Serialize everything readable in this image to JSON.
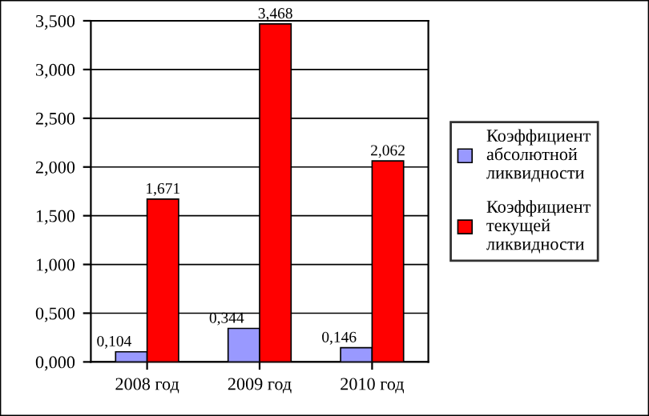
{
  "chart_data": {
    "type": "bar",
    "categories": [
      "2008 год",
      "2009 год",
      "2010 год"
    ],
    "series": [
      {
        "name": "Коэффициент\nабсолютной\nликвидности",
        "color": "#9999ff",
        "values": [
          0.104,
          0.344,
          0.146
        ],
        "value_labels": [
          "0,104",
          "0,344",
          "0,146"
        ]
      },
      {
        "name": "Коэффициент\nтекущей\nликвидности",
        "color": "#ff0000",
        "values": [
          1.671,
          3.468,
          2.062
        ],
        "value_labels": [
          "1,671",
          "3,468",
          "2,062"
        ]
      }
    ],
    "ylim": [
      0,
      3.5
    ],
    "yticks": [
      {
        "value": 0,
        "label": "0,000"
      },
      {
        "value": 0.5,
        "label": "0,500"
      },
      {
        "value": 1,
        "label": "1,000"
      },
      {
        "value": 1.5,
        "label": "1,500"
      },
      {
        "value": 2,
        "label": "2,000"
      },
      {
        "value": 2.5,
        "label": "2,500"
      },
      {
        "value": 3,
        "label": "3,000"
      },
      {
        "value": 3.5,
        "label": "3,500"
      }
    ],
    "grid": "y",
    "legend": "right"
  }
}
